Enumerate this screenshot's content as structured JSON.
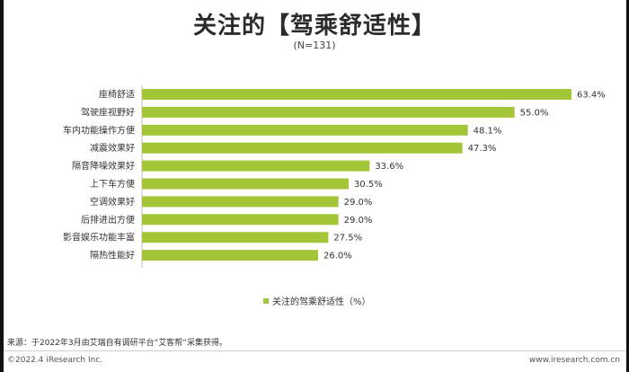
{
  "header": {
    "title": "关注的【驾乘舒适性】",
    "subtitle": "(N=131)"
  },
  "chart_data": {
    "type": "bar",
    "orientation": "horizontal",
    "categories": [
      "座椅舒适",
      "驾驶座视野好",
      "车内功能操作方便",
      "减震效果好",
      "隔音降噪效果好",
      "上下车方便",
      "空调效果好",
      "后排进出方便",
      "影音娱乐功能丰富",
      "隔热性能好"
    ],
    "values": [
      63.4,
      55.0,
      48.1,
      47.3,
      33.6,
      30.5,
      29.0,
      29.0,
      27.5,
      26.0
    ],
    "value_labels": [
      "63.4%",
      "55.0%",
      "48.1%",
      "47.3%",
      "33.6%",
      "30.5%",
      "29.0%",
      "29.0%",
      "27.5%",
      "26.0%"
    ],
    "series": [
      {
        "name": "关注的驾乘舒适性（%）",
        "color": "#a3c639"
      }
    ],
    "xlim": [
      0,
      63.4
    ],
    "grid": false,
    "legend_position": "bottom"
  },
  "legend": {
    "label": "关注的驾乘舒适性（%）"
  },
  "footer": {
    "source": "来源：于2022年3月由艾瑞自有调研平台“艾客帮”采集获得。",
    "copyright": "©2022.4 iResearch Inc.",
    "website": "www.iresearch.com.cn"
  }
}
